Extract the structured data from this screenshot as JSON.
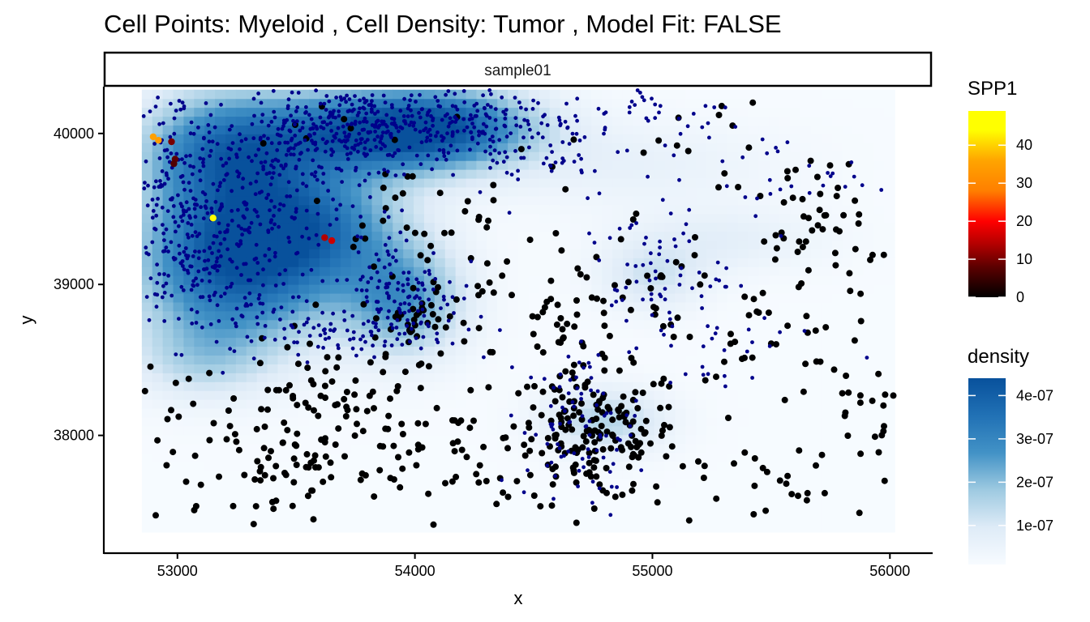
{
  "chart_data": {
    "type": "scatter",
    "title": "Cell Points: Myeloid , Cell Density: Tumor , Model Fit: FALSE",
    "facet_label": "sample01",
    "xlabel": "x",
    "ylabel": "y",
    "xlim": [
      52690,
      56180
    ],
    "ylim": [
      37220,
      40310
    ],
    "x_ticks": [
      53000,
      54000,
      55000,
      56000
    ],
    "y_ticks": [
      38000,
      39000,
      40000
    ],
    "x_tick_labels": [
      "53000",
      "54000",
      "55000",
      "56000"
    ],
    "y_tick_labels": [
      "38000",
      "39000",
      "40000"
    ],
    "legend_position": "right",
    "density_legend": {
      "title": "density",
      "range": [
        1e-08,
        4.4e-07
      ],
      "ticks": [
        1e-07,
        2e-07,
        3e-07,
        4e-07
      ],
      "tick_labels": [
        "1e-07",
        "2e-07",
        "3e-07",
        "4e-07"
      ],
      "colors": [
        "#f7fbff",
        "#deebf7",
        "#9ecae1",
        "#4292c6",
        "#2171b5",
        "#08519c"
      ]
    },
    "spp1_legend": {
      "title": "SPP1",
      "range": [
        0,
        49
      ],
      "ticks": [
        0,
        10,
        20,
        30,
        40
      ],
      "tick_labels": [
        "0",
        "10",
        "20",
        "30",
        "40"
      ],
      "stops": [
        {
          "v": 0,
          "c": "#000000"
        },
        {
          "v": 8,
          "c": "#5c0000"
        },
        {
          "v": 14,
          "c": "#b30000"
        },
        {
          "v": 20,
          "c": "#ff0000"
        },
        {
          "v": 28,
          "c": "#ff7f00"
        },
        {
          "v": 36,
          "c": "#ffa500"
        },
        {
          "v": 44,
          "c": "#ffff00"
        },
        {
          "v": 49,
          "c": "#ffff00"
        }
      ]
    },
    "density_grid": {
      "x_range": [
        52850,
        56020
      ],
      "y_range": [
        37360,
        40290
      ],
      "hotspots": [
        {
          "x": 53250,
          "y": 39150,
          "sx": 300,
          "sy": 380,
          "w": 4e-07
        },
        {
          "x": 53850,
          "y": 40020,
          "sx": 320,
          "sy": 200,
          "w": 3.8e-07
        },
        {
          "x": 53200,
          "y": 39900,
          "sx": 260,
          "sy": 280,
          "w": 3e-07
        },
        {
          "x": 53600,
          "y": 39400,
          "sx": 260,
          "sy": 260,
          "w": 2.2e-07
        },
        {
          "x": 53950,
          "y": 38900,
          "sx": 180,
          "sy": 260,
          "w": 2.4e-07
        },
        {
          "x": 54200,
          "y": 40050,
          "sx": 260,
          "sy": 180,
          "w": 2e-07
        },
        {
          "x": 53100,
          "y": 38500,
          "sx": 200,
          "sy": 180,
          "w": 1e-07
        },
        {
          "x": 54800,
          "y": 38100,
          "sx": 180,
          "sy": 150,
          "w": 1.4e-07
        },
        {
          "x": 55000,
          "y": 39050,
          "sx": 160,
          "sy": 160,
          "w": 1e-07
        },
        {
          "x": 55300,
          "y": 39300,
          "sx": 300,
          "sy": 150,
          "w": 6e-08
        },
        {
          "x": 54900,
          "y": 39800,
          "sx": 450,
          "sy": 200,
          "w": 5e-08
        }
      ]
    },
    "myeloid_points": [
      {
        "x": 52898,
        "y": 39978,
        "spp1": 35
      },
      {
        "x": 52920,
        "y": 39955,
        "spp1": 34
      },
      {
        "x": 52975,
        "y": 39945,
        "spp1": 10
      },
      {
        "x": 52990,
        "y": 39830,
        "spp1": 8
      },
      {
        "x": 52985,
        "y": 39800,
        "spp1": 7
      },
      {
        "x": 53150,
        "y": 39440,
        "spp1": 48
      },
      {
        "x": 53620,
        "y": 39310,
        "spp1": 14
      },
      {
        "x": 53650,
        "y": 39290,
        "spp1": 16
      }
    ],
    "myeloid_clusters": [
      {
        "x": 53100,
        "y": 39200,
        "sx": 180,
        "sy": 300,
        "n": 240
      },
      {
        "x": 53000,
        "y": 39700,
        "sx": 120,
        "sy": 300,
        "n": 120
      },
      {
        "x": 53450,
        "y": 39600,
        "sx": 180,
        "sy": 350,
        "n": 160
      },
      {
        "x": 53850,
        "y": 40050,
        "sx": 280,
        "sy": 130,
        "n": 260
      },
      {
        "x": 53500,
        "y": 39950,
        "sx": 150,
        "sy": 220,
        "n": 90
      },
      {
        "x": 54150,
        "y": 40100,
        "sx": 220,
        "sy": 140,
        "n": 90
      },
      {
        "x": 54500,
        "y": 39950,
        "sx": 200,
        "sy": 200,
        "n": 70
      },
      {
        "x": 55000,
        "y": 40150,
        "sx": 180,
        "sy": 90,
        "n": 35
      },
      {
        "x": 53950,
        "y": 38950,
        "sx": 120,
        "sy": 200,
        "n": 110
      },
      {
        "x": 53700,
        "y": 38700,
        "sx": 250,
        "sy": 80,
        "n": 80
      },
      {
        "x": 54700,
        "y": 38050,
        "sx": 120,
        "sy": 260,
        "n": 90
      },
      {
        "x": 55000,
        "y": 39100,
        "sx": 150,
        "sy": 180,
        "n": 60
      },
      {
        "x": 55500,
        "y": 39700,
        "sx": 250,
        "sy": 150,
        "n": 35
      },
      {
        "x": 55200,
        "y": 38600,
        "sx": 250,
        "sy": 200,
        "n": 30
      }
    ],
    "other_clusters": [
      {
        "x": 53650,
        "y": 38100,
        "sx": 250,
        "sy": 250,
        "n": 110
      },
      {
        "x": 53300,
        "y": 37750,
        "sx": 250,
        "sy": 200,
        "n": 40
      },
      {
        "x": 53000,
        "y": 38200,
        "sx": 150,
        "sy": 250,
        "n": 15
      },
      {
        "x": 54000,
        "y": 38750,
        "sx": 120,
        "sy": 100,
        "n": 40
      },
      {
        "x": 54200,
        "y": 37900,
        "sx": 200,
        "sy": 230,
        "n": 40
      },
      {
        "x": 54750,
        "y": 38000,
        "sx": 180,
        "sy": 220,
        "n": 180
      },
      {
        "x": 54650,
        "y": 38700,
        "sx": 150,
        "sy": 150,
        "n": 30
      },
      {
        "x": 54300,
        "y": 39300,
        "sx": 250,
        "sy": 250,
        "n": 40
      },
      {
        "x": 53950,
        "y": 39550,
        "sx": 120,
        "sy": 120,
        "n": 12
      },
      {
        "x": 55300,
        "y": 38600,
        "sx": 300,
        "sy": 200,
        "n": 40
      },
      {
        "x": 55700,
        "y": 39300,
        "sx": 250,
        "sy": 300,
        "n": 70
      },
      {
        "x": 55500,
        "y": 37700,
        "sx": 280,
        "sy": 150,
        "n": 25
      },
      {
        "x": 55900,
        "y": 38200,
        "sx": 150,
        "sy": 250,
        "n": 25
      },
      {
        "x": 54950,
        "y": 39000,
        "sx": 200,
        "sy": 250,
        "n": 20
      },
      {
        "x": 55100,
        "y": 40050,
        "sx": 200,
        "sy": 150,
        "n": 12
      },
      {
        "x": 53700,
        "y": 40100,
        "sx": 200,
        "sy": 100,
        "n": 8
      }
    ],
    "point_colors": {
      "myeloid": "#00008b",
      "other_cells": "#000000"
    }
  }
}
